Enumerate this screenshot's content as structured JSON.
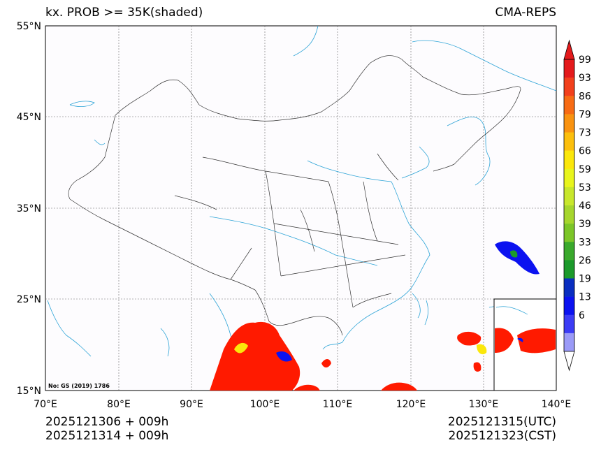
{
  "title": {
    "left": "kx. PROB >= 35K(shaded)",
    "right": "CMA-REPS"
  },
  "footer": {
    "init_utc": "2025121306  +  009h",
    "init_cst": "2025121314  +  009h",
    "valid_utc": "2025121315(UTC)",
    "valid_cst": "2025121323(CST)"
  },
  "map": {
    "credit": "No: GS (2019) 1786",
    "lat_labels": [
      "55°N",
      "45°N",
      "35°N",
      "25°N",
      "15°N"
    ],
    "lon_labels": [
      "70°E",
      "80°E",
      "90°E",
      "100°E",
      "110°E",
      "120°E",
      "130°E",
      "140°E"
    ]
  },
  "colorbar": {
    "labels": [
      "99",
      "93",
      "86",
      "79",
      "73",
      "66",
      "59",
      "53",
      "46",
      "39",
      "33",
      "26",
      "19",
      "13",
      "6"
    ],
    "colors": [
      "#e41a1c",
      "#f2401c",
      "#f76b14",
      "#f99310",
      "#fcbf0c",
      "#fbe70b",
      "#e8f51d",
      "#c8e72c",
      "#a6d62d",
      "#7cc628",
      "#3aa92c",
      "#1c9a2b",
      "#0a2ec0",
      "#0b12f0",
      "#3c3cf5",
      "#9a9af7"
    ],
    "top_color": "#e41a1c",
    "bottom_color": "#ffffff"
  },
  "colors": {
    "coast": "#2ba3d6",
    "border": "#333333",
    "shade_high": "#ff1a00",
    "shade_mid": "#fbe70b",
    "shade_low": "#0b12f0"
  }
}
